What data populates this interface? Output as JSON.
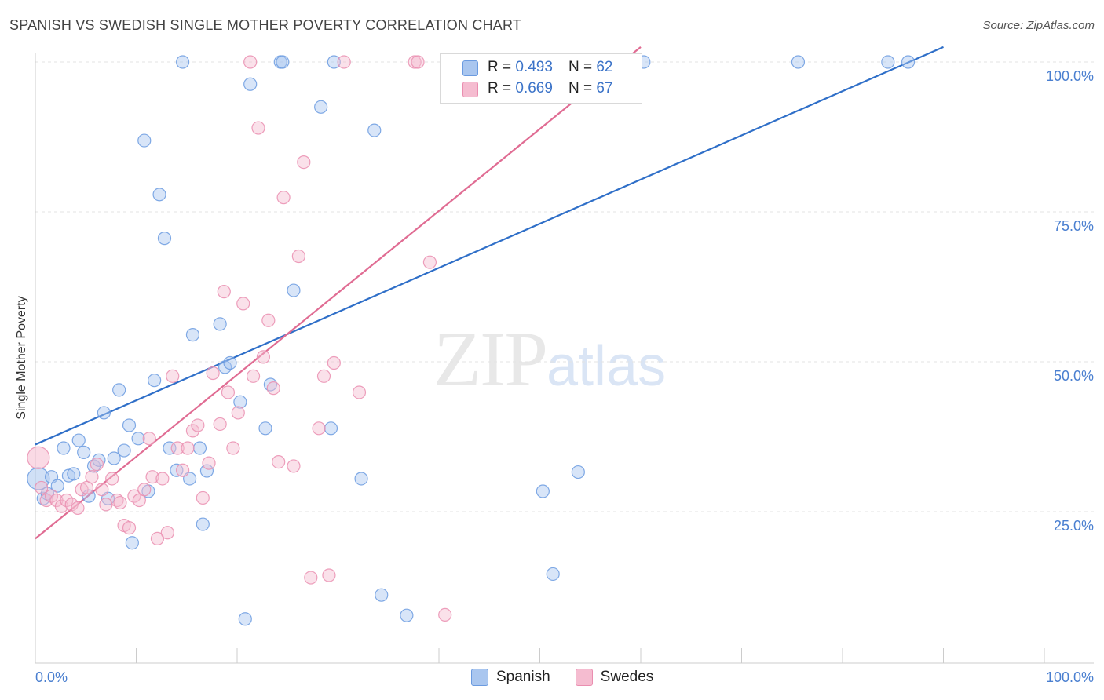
{
  "title": "SPANISH VS SWEDISH SINGLE MOTHER POVERTY CORRELATION CHART",
  "source": "Source: ZipAtlas.com",
  "watermark": {
    "zip": "ZIP",
    "atlas": "atlas"
  },
  "legend": {
    "r_label": "R =",
    "n_label": "N =",
    "spanish": {
      "r": "0.493",
      "n": "62"
    },
    "swedes": {
      "r": "0.669",
      "n": "67"
    }
  },
  "bottom_legend": {
    "spanish": "Spanish",
    "swedes": "Swedes"
  },
  "colors": {
    "spanish_fill": "#a9c6ef",
    "spanish_stroke": "#6b9be0",
    "spanish_line": "#2f6fc8",
    "swedes_fill": "#f5bcd0",
    "swedes_stroke": "#ea8eb0",
    "swedes_line": "#e06c93",
    "axis_text": "#4a7fd0",
    "grid": "#e3e3e3"
  },
  "chart_data": {
    "type": "scatter",
    "title": "SPANISH VS SWEDISH SINGLE MOTHER POVERTY CORRELATION CHART",
    "xlabel": "",
    "ylabel": "Single Mother Poverty",
    "xlim": [
      0,
      100
    ],
    "ylim": [
      0,
      105
    ],
    "x_tick_labels": [
      "0.0%",
      "100.0%"
    ],
    "y_ticks": [
      25,
      50,
      75,
      100
    ],
    "y_tick_labels": [
      "25.0%",
      "50.0%",
      "75.0%",
      "100.0%"
    ],
    "grid": true,
    "legend_position": "top-center",
    "series": [
      {
        "name": "Spanish",
        "r": 0.493,
        "n": 62,
        "trend": [
          [
            0,
            36.2
          ],
          [
            90,
            102.5
          ]
        ],
        "points": [
          [
            0.3,
            30.5
          ],
          [
            0.8,
            27.2
          ],
          [
            1.2,
            28.0
          ],
          [
            1.6,
            30.8
          ],
          [
            2.2,
            29.3
          ],
          [
            2.8,
            35.6
          ],
          [
            3.3,
            31.0
          ],
          [
            3.8,
            31.3
          ],
          [
            4.3,
            36.9
          ],
          [
            4.8,
            34.9
          ],
          [
            5.3,
            27.6
          ],
          [
            5.8,
            32.6
          ],
          [
            6.3,
            33.6
          ],
          [
            6.8,
            41.5
          ],
          [
            7.2,
            27.2
          ],
          [
            7.8,
            33.9
          ],
          [
            8.3,
            45.3
          ],
          [
            8.8,
            35.2
          ],
          [
            9.3,
            39.4
          ],
          [
            9.6,
            19.8
          ],
          [
            10.2,
            37.2
          ],
          [
            10.8,
            86.9
          ],
          [
            11.2,
            28.4
          ],
          [
            11.8,
            46.9
          ],
          [
            12.3,
            77.9
          ],
          [
            12.8,
            70.6
          ],
          [
            13.3,
            35.6
          ],
          [
            14.0,
            31.9
          ],
          [
            14.6,
            100.0
          ],
          [
            15.3,
            30.5
          ],
          [
            15.6,
            54.5
          ],
          [
            16.3,
            35.6
          ],
          [
            16.6,
            22.9
          ],
          [
            17.0,
            31.8
          ],
          [
            18.3,
            56.3
          ],
          [
            18.8,
            49.1
          ],
          [
            19.3,
            49.8
          ],
          [
            20.3,
            43.3
          ],
          [
            20.8,
            7.1
          ],
          [
            21.3,
            96.3
          ],
          [
            22.8,
            38.9
          ],
          [
            23.3,
            46.2
          ],
          [
            24.3,
            100.0
          ],
          [
            24.5,
            100.0
          ],
          [
            25.6,
            61.9
          ],
          [
            28.3,
            92.5
          ],
          [
            29.3,
            38.9
          ],
          [
            29.6,
            100.0
          ],
          [
            32.3,
            30.5
          ],
          [
            33.6,
            88.6
          ],
          [
            34.3,
            11.1
          ],
          [
            36.8,
            7.7
          ],
          [
            41.6,
            100.0
          ],
          [
            48.3,
            100.0
          ],
          [
            48.8,
            100.0
          ],
          [
            50.3,
            28.4
          ],
          [
            51.3,
            14.6
          ],
          [
            53.8,
            31.6
          ],
          [
            60.3,
            100.0
          ],
          [
            75.6,
            100.0
          ],
          [
            84.5,
            100.0
          ],
          [
            86.5,
            100.0
          ]
        ]
      },
      {
        "name": "Swedes",
        "r": 0.669,
        "n": 67,
        "trend": [
          [
            0,
            20.5
          ],
          [
            60,
            102.5
          ]
        ],
        "points": [
          [
            0.3,
            34.0
          ],
          [
            0.6,
            29.0
          ],
          [
            1.1,
            26.9
          ],
          [
            1.6,
            27.6
          ],
          [
            2.1,
            26.9
          ],
          [
            2.6,
            25.9
          ],
          [
            3.1,
            26.9
          ],
          [
            3.6,
            26.2
          ],
          [
            4.2,
            25.6
          ],
          [
            4.6,
            28.7
          ],
          [
            5.1,
            29.0
          ],
          [
            5.6,
            30.8
          ],
          [
            6.1,
            32.9
          ],
          [
            6.6,
            28.7
          ],
          [
            7.0,
            26.2
          ],
          [
            7.6,
            30.5
          ],
          [
            8.1,
            26.9
          ],
          [
            8.4,
            26.5
          ],
          [
            8.8,
            22.7
          ],
          [
            9.3,
            22.3
          ],
          [
            9.8,
            27.6
          ],
          [
            10.3,
            26.9
          ],
          [
            10.8,
            28.7
          ],
          [
            11.3,
            37.2
          ],
          [
            11.6,
            30.8
          ],
          [
            12.1,
            20.5
          ],
          [
            12.6,
            30.5
          ],
          [
            13.1,
            21.5
          ],
          [
            13.6,
            47.6
          ],
          [
            14.1,
            35.6
          ],
          [
            14.6,
            31.9
          ],
          [
            15.1,
            35.6
          ],
          [
            15.6,
            38.5
          ],
          [
            16.1,
            39.4
          ],
          [
            16.6,
            27.3
          ],
          [
            17.2,
            33.1
          ],
          [
            17.6,
            48.1
          ],
          [
            18.3,
            39.6
          ],
          [
            18.7,
            61.7
          ],
          [
            19.1,
            44.9
          ],
          [
            19.6,
            35.6
          ],
          [
            20.1,
            41.5
          ],
          [
            20.6,
            59.7
          ],
          [
            21.3,
            100.0
          ],
          [
            21.6,
            47.6
          ],
          [
            22.1,
            89.0
          ],
          [
            22.6,
            50.8
          ],
          [
            23.1,
            56.9
          ],
          [
            23.6,
            45.6
          ],
          [
            24.1,
            33.3
          ],
          [
            24.6,
            77.4
          ],
          [
            25.6,
            32.6
          ],
          [
            26.1,
            67.6
          ],
          [
            26.6,
            83.3
          ],
          [
            27.3,
            14.0
          ],
          [
            28.1,
            38.9
          ],
          [
            28.6,
            47.6
          ],
          [
            29.1,
            14.4
          ],
          [
            29.6,
            49.8
          ],
          [
            30.6,
            100.0
          ],
          [
            32.1,
            44.9
          ],
          [
            37.6,
            100.0
          ],
          [
            37.9,
            100.0
          ],
          [
            39.1,
            66.6
          ],
          [
            40.6,
            7.8
          ],
          [
            41.0,
            100.0
          ],
          [
            44.5,
            100.0
          ]
        ]
      }
    ]
  }
}
